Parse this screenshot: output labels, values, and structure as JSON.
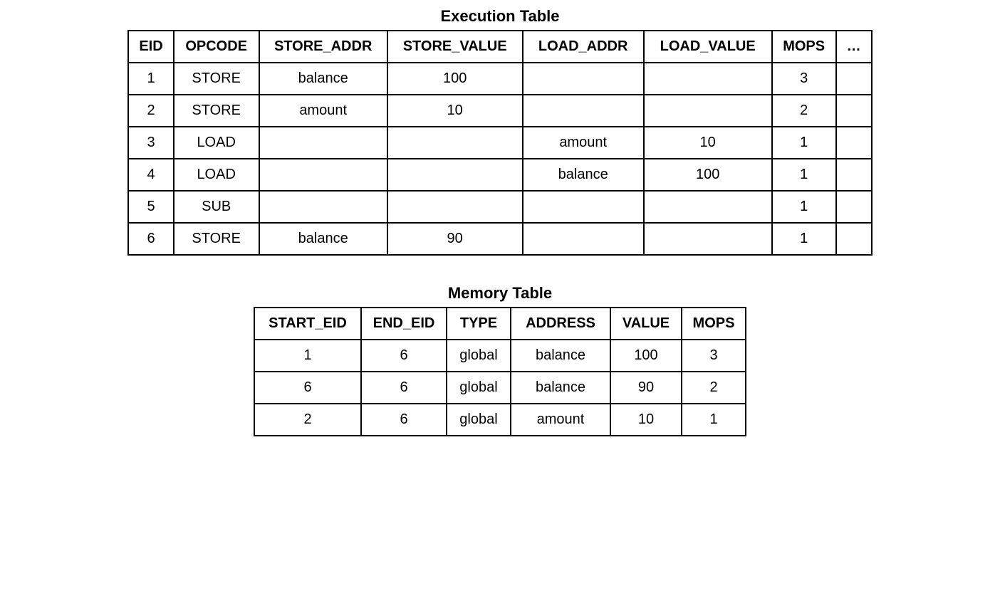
{
  "execution_table": {
    "title": "Execution Table",
    "columns": [
      "EID",
      "OPCODE",
      "STORE_ADDR",
      "STORE_VALUE",
      "LOAD_ADDR",
      "LOAD_VALUE",
      "MOPS",
      "…"
    ],
    "rows": [
      [
        "1",
        "STORE",
        "balance",
        "100",
        "",
        "",
        "3",
        ""
      ],
      [
        "2",
        "STORE",
        "amount",
        "10",
        "",
        "",
        "2",
        ""
      ],
      [
        "3",
        "LOAD",
        "",
        "",
        "amount",
        "10",
        "1",
        ""
      ],
      [
        "4",
        "LOAD",
        "",
        "",
        "balance",
        "100",
        "1",
        ""
      ],
      [
        "5",
        "SUB",
        "",
        "",
        "",
        "",
        "1",
        ""
      ],
      [
        "6",
        "STORE",
        "balance",
        "90",
        "",
        "",
        "1",
        ""
      ]
    ],
    "header_fontsize": 20,
    "cell_fontsize": 20,
    "border_color": "#000000",
    "background_color": "#ffffff",
    "text_color": "#000000"
  },
  "memory_table": {
    "title": "Memory Table",
    "columns": [
      "START_EID",
      "END_EID",
      "TYPE",
      "ADDRESS",
      "VALUE",
      "MOPS"
    ],
    "rows": [
      [
        "1",
        "6",
        "global",
        "balance",
        "100",
        "3"
      ],
      [
        "6",
        "6",
        "global",
        "balance",
        "90",
        "2"
      ],
      [
        "2",
        "6",
        "global",
        "amount",
        "10",
        "1"
      ]
    ],
    "header_fontsize": 20,
    "cell_fontsize": 20,
    "border_color": "#000000",
    "background_color": "#ffffff",
    "text_color": "#000000"
  }
}
